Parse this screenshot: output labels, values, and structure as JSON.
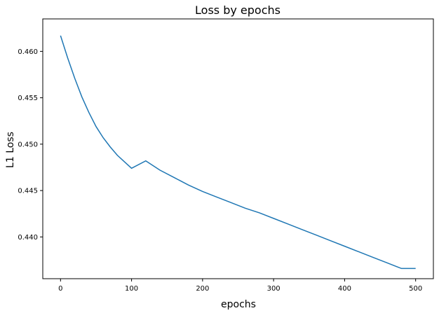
{
  "chart_data": {
    "type": "line",
    "title": "Loss by epochs",
    "xlabel": "epochs",
    "ylabel": "L1 Loss",
    "xlim": [
      -25,
      525
    ],
    "ylim": [
      0.4355,
      0.4635
    ],
    "xticks": [
      0,
      100,
      200,
      300,
      400,
      500
    ],
    "xtick_labels": [
      "0",
      "100",
      "200",
      "300",
      "400",
      "500"
    ],
    "yticks": [
      0.44,
      0.445,
      0.45,
      0.455,
      0.46
    ],
    "ytick_labels": [
      "0.440",
      "0.445",
      "0.450",
      "0.455",
      "0.460"
    ],
    "grid": false,
    "legend": "none",
    "series": [
      {
        "name": "L1 Loss",
        "color": "#1f77b4",
        "x": [
          0,
          10,
          20,
          30,
          40,
          50,
          60,
          70,
          80,
          90,
          100,
          120,
          140,
          160,
          180,
          200,
          220,
          240,
          260,
          280,
          300,
          320,
          340,
          360,
          380,
          400,
          420,
          440,
          460,
          480,
          500
        ],
        "y": [
          0.4617,
          0.4593,
          0.4571,
          0.4551,
          0.4534,
          0.4519,
          0.4507,
          0.4497,
          0.4488,
          0.4481,
          0.4474,
          0.4482,
          0.4472,
          0.4464,
          0.4456,
          0.4449,
          0.4443,
          0.4437,
          0.4431,
          0.4426,
          0.442,
          0.4414,
          0.4408,
          0.4402,
          0.4396,
          0.439,
          0.4384,
          0.4378,
          0.4372,
          0.4366,
          0.4366
        ]
      }
    ]
  }
}
